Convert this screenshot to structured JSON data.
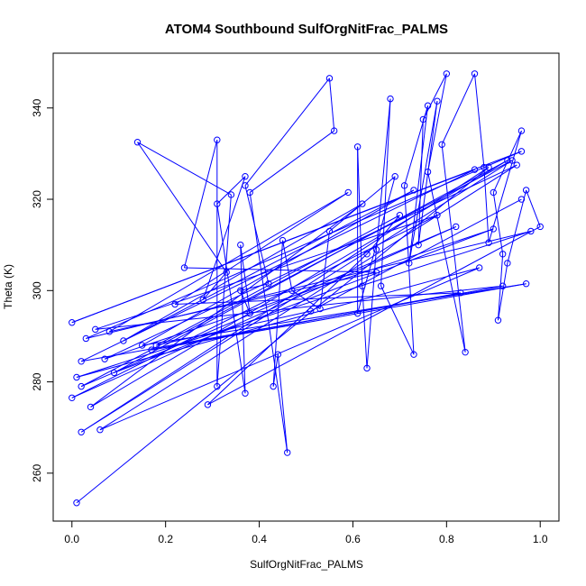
{
  "chart_data": {
    "type": "line",
    "title": "ATOM4 Southbound SulfOrgNitFrac_PALMS",
    "xlabel": "SulfOrgNitFrac_PALMS",
    "ylabel": "Theta (K)",
    "xlim": [
      -0.04,
      1.04
    ],
    "ylim": [
      249.5,
      352.0
    ],
    "x_ticks": [
      0.0,
      0.2,
      0.4,
      0.6,
      0.8,
      1.0
    ],
    "x_tick_labels": [
      "0.0",
      "0.2",
      "0.4",
      "0.6",
      "0.8",
      "1.0"
    ],
    "y_ticks": [
      260,
      280,
      300,
      320,
      340
    ],
    "y_tick_labels": [
      "260",
      "280",
      "300",
      "320",
      "340"
    ],
    "series": [
      {
        "color": "#0000ff",
        "marker": "open-circle",
        "points": [
          [
            0.01,
            253.5
          ],
          [
            0.89,
            327.0
          ],
          [
            0.02,
            269.0
          ],
          [
            0.94,
            328.5
          ],
          [
            0.02,
            279.0
          ],
          [
            0.82,
            314.0
          ],
          [
            0.0,
            276.5
          ],
          [
            0.78,
            316.5
          ],
          [
            0.05,
            291.5
          ],
          [
            0.92,
            301.0
          ],
          [
            0.02,
            284.5
          ],
          [
            0.86,
            326.5
          ],
          [
            0.0,
            293.0
          ],
          [
            0.96,
            330.5
          ],
          [
            0.03,
            289.5
          ],
          [
            0.98,
            313.0
          ],
          [
            0.01,
            281.0
          ],
          [
            0.87,
            305.0
          ],
          [
            0.06,
            269.5
          ],
          [
            0.95,
            327.5
          ],
          [
            0.07,
            285.0
          ],
          [
            0.9,
            313.5
          ],
          [
            0.09,
            282.0
          ],
          [
            0.93,
            328.5
          ],
          [
            0.04,
            274.5
          ],
          [
            0.62,
            319.0
          ],
          [
            0.11,
            289.0
          ],
          [
            0.73,
            322.0
          ],
          [
            0.15,
            288.0
          ],
          [
            0.97,
            301.5
          ],
          [
            0.17,
            287.0
          ],
          [
            0.83,
            299.5
          ],
          [
            0.22,
            297.0
          ],
          [
            0.59,
            321.5
          ],
          [
            0.08,
            291.0
          ],
          [
            0.65,
            304.0
          ],
          [
            0.24,
            305.0
          ],
          [
            0.31,
            333.0
          ],
          [
            0.31,
            279.0
          ],
          [
            0.34,
            321.0
          ],
          [
            0.14,
            332.5
          ],
          [
            0.33,
            304.0
          ],
          [
            0.28,
            298.0
          ],
          [
            0.37,
            325.0
          ],
          [
            0.31,
            319.0
          ],
          [
            0.37,
            277.5
          ],
          [
            0.36,
            310.0
          ],
          [
            0.38,
            295.0
          ],
          [
            0.36,
            300.0
          ],
          [
            0.42,
            301.5
          ],
          [
            0.37,
            323.0
          ],
          [
            0.55,
            346.5
          ],
          [
            0.56,
            335.0
          ],
          [
            0.38,
            321.5
          ],
          [
            0.46,
            264.5
          ],
          [
            0.44,
            286.0
          ],
          [
            0.43,
            279.0
          ],
          [
            0.45,
            311.0
          ],
          [
            0.47,
            300.0
          ],
          [
            0.53,
            296.0
          ],
          [
            0.55,
            313.0
          ],
          [
            0.69,
            325.0
          ],
          [
            0.61,
            295.0
          ],
          [
            0.61,
            331.5
          ],
          [
            0.62,
            301.0
          ],
          [
            0.63,
            283.0
          ],
          [
            0.65,
            309.0
          ],
          [
            0.68,
            342.0
          ],
          [
            0.66,
            301.0
          ],
          [
            0.73,
            286.0
          ],
          [
            0.71,
            323.0
          ],
          [
            0.76,
            340.5
          ],
          [
            0.72,
            306.0
          ],
          [
            0.78,
            341.5
          ],
          [
            0.74,
            310.0
          ],
          [
            0.75,
            337.5
          ],
          [
            0.8,
            347.5
          ],
          [
            0.76,
            326.0
          ],
          [
            0.84,
            286.5
          ],
          [
            0.79,
            332.0
          ],
          [
            0.86,
            347.5
          ],
          [
            0.88,
            327.0
          ],
          [
            0.89,
            310.5
          ],
          [
            0.96,
            335.0
          ],
          [
            0.9,
            321.5
          ],
          [
            0.92,
            308.0
          ],
          [
            0.91,
            293.5
          ],
          [
            0.93,
            306.0
          ],
          [
            0.97,
            322.0
          ],
          [
            1.0,
            314.0
          ],
          [
            0.29,
            275.0
          ],
          [
            0.63,
            308.0
          ],
          [
            0.7,
            316.5
          ],
          [
            0.18,
            288.0
          ],
          [
            0.51,
            295.5
          ],
          [
            0.96,
            320.0
          ]
        ]
      }
    ]
  }
}
